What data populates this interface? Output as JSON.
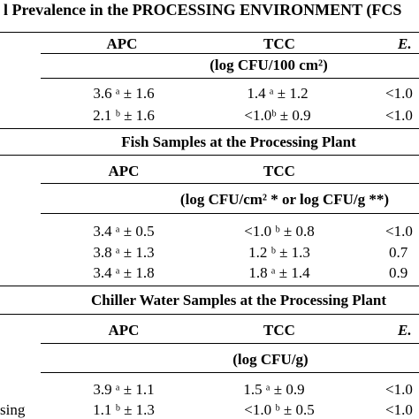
{
  "title_fragment": "l Prevalence in the PROCESSING ENVIRONMENT (FCS",
  "sections": [
    {
      "name": "",
      "headers": [
        "APC",
        "TCC",
        "E."
      ],
      "unit": "(log CFU/100 cm²)",
      "rows": [
        {
          "label": "",
          "apc": "3.6 ᵃ ± 1.6",
          "tcc": "1.4 ᵃ ± 1.2",
          "e": "<1.0"
        },
        {
          "label": "",
          "apc": "2.1 ᵇ ± 1.6",
          "tcc": "<1.0ᵇ ± 0.9",
          "e": "<1.0"
        }
      ]
    },
    {
      "name": "Fish Samples at the Processing Plant",
      "headers": [
        "APC",
        "TCC",
        ""
      ],
      "unit": "(log CFU/cm² * or log CFU/g **)",
      "rows": [
        {
          "label": "",
          "apc": "3.4 ᵃ ± 0.5",
          "tcc": "<1.0 ᵇ ± 0.8",
          "e": "<1.0"
        },
        {
          "label": "",
          "apc": "3.8 ᵃ ± 1.3",
          "tcc": "1.2 ᵇ ± 1.3",
          "e": "0.7"
        },
        {
          "label": "",
          "apc": "3.4 ᵃ ± 1.8",
          "tcc": "1.8 ᵃ ± 1.4",
          "e": "0.9"
        }
      ]
    },
    {
      "name": "Chiller Water Samples at the Processing Plant",
      "headers": [
        "APC",
        "TCC",
        "E."
      ],
      "unit": "(log CFU/g)",
      "rows": [
        {
          "label": "",
          "apc": "3.9 ᵃ ± 1.1",
          "tcc": "1.5 ᵃ ± 0.9",
          "e": "<1.0"
        },
        {
          "label": "sing",
          "apc": "1.1 ᵇ ± 1.3",
          "tcc": "<1.0 ᵇ ± 0.5",
          "e": "<1.0"
        }
      ]
    }
  ]
}
